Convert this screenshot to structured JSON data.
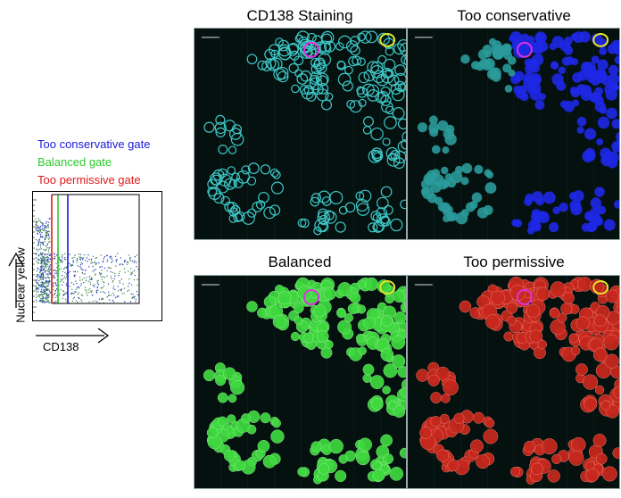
{
  "legend": {
    "conservative": {
      "text": "Too conservative gate",
      "color": "#1a1adc"
    },
    "balanced": {
      "text": "Balanced gate",
      "color": "#2ec82e"
    },
    "permissive": {
      "text": "Too permissive gate",
      "color": "#e01a1a"
    }
  },
  "scatter_plot": {
    "xlabel": "CD138",
    "ylabel": "Nuclear yellow"
  },
  "panels": [
    {
      "id": "cd138",
      "title": "CD138 Staining",
      "overlay_color": ""
    },
    {
      "id": "conservative",
      "title": "Too conservative",
      "overlay_color": "#1e28e6"
    },
    {
      "id": "balanced",
      "title": "Balanced",
      "overlay_color": "#3fd93f"
    },
    {
      "id": "permissive",
      "title": "Too permissive",
      "overlay_color": "#c8281e"
    }
  ],
  "colors": {
    "cells": "#3fc8c8",
    "marker_magenta": "#e030e0",
    "marker_yellow": "#e6e628",
    "background": "#04110f"
  }
}
